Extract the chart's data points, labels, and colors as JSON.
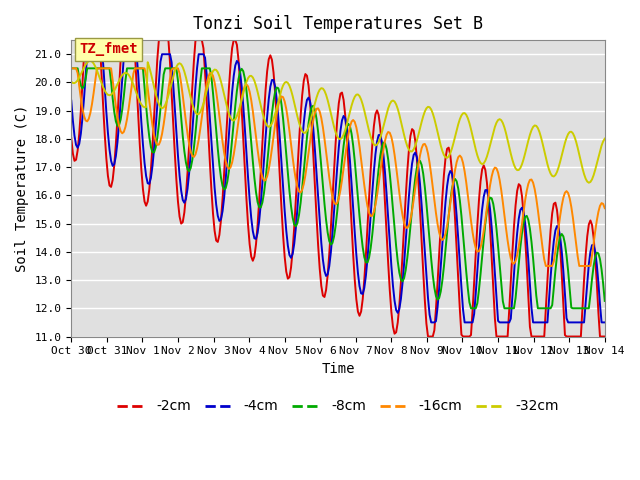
{
  "title": "Tonzi Soil Temperatures Set B",
  "xlabel": "Time",
  "ylabel": "Soil Temperature (C)",
  "ylim": [
    11.0,
    21.5
  ],
  "yticks": [
    11.0,
    12.0,
    13.0,
    14.0,
    15.0,
    16.0,
    17.0,
    18.0,
    19.0,
    20.0,
    21.0
  ],
  "xtick_labels": [
    "Oct 30",
    "Oct 31",
    "Nov 1",
    "Nov 2",
    "Nov 3",
    "Nov 4",
    "Nov 5",
    "Nov 6",
    "Nov 7",
    "Nov 8",
    "Nov 9",
    "Nov 10",
    "Nov 11",
    "Nov 12",
    "Nov 13",
    "Nov 14"
  ],
  "series_colors": [
    "#dd0000",
    "#0000cc",
    "#00aa00",
    "#ff8800",
    "#cccc00"
  ],
  "series_labels": [
    "-2cm",
    "-4cm",
    "-8cm",
    "-16cm",
    "-32cm"
  ],
  "annotation_text": "TZ_fmet",
  "annotation_color": "#cc0000",
  "annotation_bg": "#ffffaa",
  "background_color": "#e0e0e0",
  "grid_color": "#ffffff",
  "title_fontsize": 12,
  "axis_fontsize": 10,
  "tick_fontsize": 8,
  "legend_fontsize": 10,
  "line_width": 1.4,
  "n_points": 336,
  "days": 15,
  "start_day": 0
}
